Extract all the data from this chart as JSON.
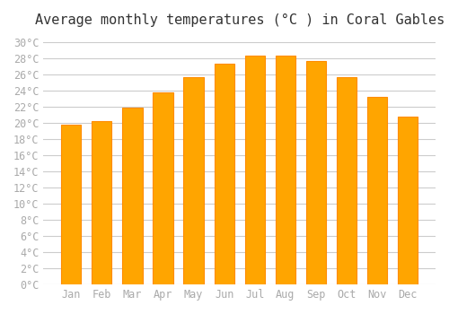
{
  "title": "Average monthly temperatures (°C ) in Coral Gables",
  "months": [
    "Jan",
    "Feb",
    "Mar",
    "Apr",
    "May",
    "Jun",
    "Jul",
    "Aug",
    "Sep",
    "Oct",
    "Nov",
    "Dec"
  ],
  "values": [
    19.8,
    20.2,
    21.9,
    23.8,
    25.7,
    27.3,
    28.3,
    28.3,
    27.7,
    25.7,
    23.2,
    20.8
  ],
  "bar_color": "#FFA500",
  "bar_edge_color": "#FF8C00",
  "background_color": "#FFFFFF",
  "grid_color": "#CCCCCC",
  "ylim": [
    0,
    31
  ],
  "ytick_step": 2,
  "title_fontsize": 11,
  "tick_fontsize": 8.5,
  "tick_color": "#AAAAAA",
  "font_family": "monospace"
}
